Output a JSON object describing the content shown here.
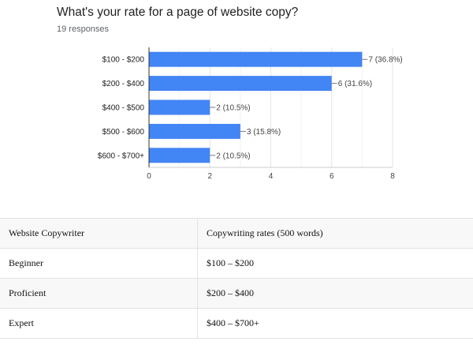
{
  "question": {
    "title": "What's your rate for a page of website copy?",
    "responses": "19 responses"
  },
  "chart_data": {
    "type": "bar",
    "orientation": "horizontal",
    "categories": [
      "$100 - $200",
      "$200 - $400",
      "$400 - $500",
      "$500 - $600",
      "$600 - $700+"
    ],
    "values": [
      7,
      6,
      2,
      3,
      2
    ],
    "data_labels": [
      "7 (36.8%)",
      "6 (31.6%)",
      "2 (10.5%)",
      "3 (15.8%)",
      "2 (10.5%)"
    ],
    "xlim": [
      0,
      8
    ],
    "xticks": [
      0,
      2,
      4,
      6,
      8
    ],
    "grid": true,
    "bar_color": "#4285f4"
  },
  "table": {
    "headers": [
      "Website Copywriter",
      "Copywriting rates (500 words)"
    ],
    "rows": [
      [
        "Beginner",
        "$100 – $200"
      ],
      [
        "Proficient",
        "$200 – $400"
      ],
      [
        "Expert",
        "$400 – $700+"
      ]
    ]
  }
}
